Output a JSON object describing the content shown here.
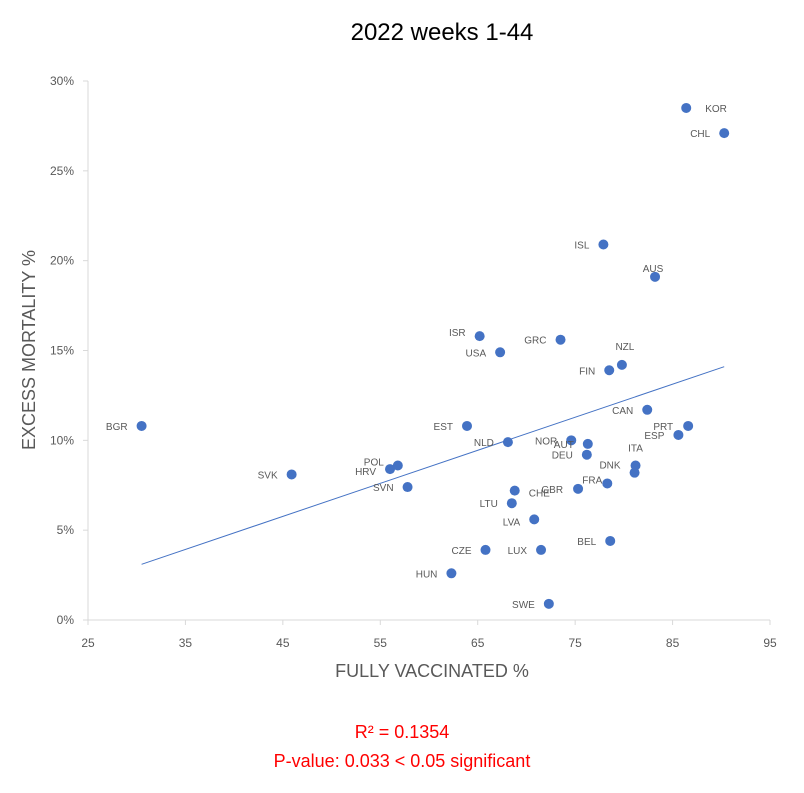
{
  "chart_data": {
    "type": "scatter",
    "title": "2022 weeks 1-44",
    "xlabel": "FULLY VACCINATED %",
    "ylabel": "EXCESS MORTALITY %",
    "xlim": [
      25,
      95
    ],
    "ylim": [
      0,
      30
    ],
    "x_ticks": [
      "25",
      "35",
      "45",
      "55",
      "65",
      "75",
      "85",
      "95"
    ],
    "y_ticks": [
      "0%",
      "5%",
      "10%",
      "15%",
      "20%",
      "25%",
      "30%"
    ],
    "grid": false,
    "marker_color": "#4472c4",
    "trendline_color": "#4472c4",
    "trendline": {
      "x": [
        30.5,
        90.3
      ],
      "y": [
        3.1,
        14.1
      ]
    },
    "points": [
      {
        "label": "KOR",
        "x": 86.4,
        "y": 28.5
      },
      {
        "label": "CHL",
        "x": 90.3,
        "y": 27.1
      },
      {
        "label": "ISL",
        "x": 77.9,
        "y": 20.9
      },
      {
        "label": "AUS",
        "x": 83.2,
        "y": 19.1
      },
      {
        "label": "ISR",
        "x": 65.2,
        "y": 15.8
      },
      {
        "label": "GRC",
        "x": 73.5,
        "y": 15.6
      },
      {
        "label": "USA",
        "x": 67.3,
        "y": 14.9
      },
      {
        "label": "NZL",
        "x": 79.8,
        "y": 14.2
      },
      {
        "label": "FIN",
        "x": 78.5,
        "y": 13.9
      },
      {
        "label": "CAN",
        "x": 82.4,
        "y": 11.7
      },
      {
        "label": "BGR",
        "x": 30.5,
        "y": 10.8
      },
      {
        "label": "EST",
        "x": 63.9,
        "y": 10.8
      },
      {
        "label": "PRT",
        "x": 86.6,
        "y": 10.8
      },
      {
        "label": "ESP",
        "x": 85.6,
        "y": 10.3
      },
      {
        "label": "NLD",
        "x": 68.1,
        "y": 9.9
      },
      {
        "label": "NOR",
        "x": 74.6,
        "y": 10.0
      },
      {
        "label": "AUT",
        "x": 76.3,
        "y": 9.8
      },
      {
        "label": "DEU",
        "x": 76.2,
        "y": 9.2
      },
      {
        "label": "ITA",
        "x": 81.2,
        "y": 8.6
      },
      {
        "label": "POL",
        "x": 56.8,
        "y": 8.6
      },
      {
        "label": "HRV",
        "x": 56.0,
        "y": 8.4
      },
      {
        "label": "SVK",
        "x": 45.9,
        "y": 8.1
      },
      {
        "label": "DNK",
        "x": 81.1,
        "y": 8.2
      },
      {
        "label": "FRA",
        "x": 78.3,
        "y": 7.6
      },
      {
        "label": "SVN",
        "x": 57.8,
        "y": 7.4
      },
      {
        "label": "GBR",
        "x": 75.3,
        "y": 7.3
      },
      {
        "label": "CHE",
        "x": 68.8,
        "y": 7.2
      },
      {
        "label": "LTU",
        "x": 68.5,
        "y": 6.5
      },
      {
        "label": "LVA",
        "x": 70.8,
        "y": 5.6
      },
      {
        "label": "BEL",
        "x": 78.6,
        "y": 4.4
      },
      {
        "label": "CZE",
        "x": 65.8,
        "y": 3.9
      },
      {
        "label": "LUX",
        "x": 71.5,
        "y": 3.9
      },
      {
        "label": "HUN",
        "x": 62.3,
        "y": 2.6
      },
      {
        "label": "SWE",
        "x": 72.3,
        "y": 0.9
      }
    ]
  },
  "stats": {
    "r_squared": "R² = 0.1354",
    "p_value": "P-value: 0.033 < 0.05 significant"
  }
}
